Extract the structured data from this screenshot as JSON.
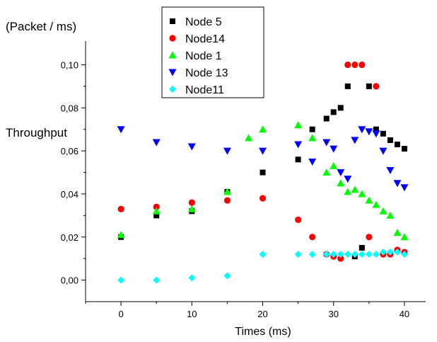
{
  "chart_data": {
    "type": "scatter",
    "ylabel_unit": "(Packet / ms)",
    "ylabel": "Throughput",
    "xlabel": "Times (ms)",
    "xlim": [
      -5,
      43
    ],
    "ylim": [
      -0.01,
      0.111
    ],
    "x_ticks": [
      0,
      10,
      20,
      30,
      40
    ],
    "x_tick_labels": [
      "0",
      "10",
      "20",
      "30",
      "40"
    ],
    "y_ticks": [
      0.0,
      0.02,
      0.04,
      0.06,
      0.08,
      0.1
    ],
    "y_tick_labels": [
      "0,00",
      "0,02",
      "0,04",
      "0,06",
      "0,08",
      "0,10"
    ],
    "legend_position": "top-center",
    "series": [
      {
        "name": "Node 5",
        "marker": "square",
        "color": "#000000",
        "points": [
          [
            0,
            0.02
          ],
          [
            5,
            0.03
          ],
          [
            10,
            0.032
          ],
          [
            15,
            0.041
          ],
          [
            20,
            0.05
          ],
          [
            25,
            0.056
          ],
          [
            27,
            0.07
          ],
          [
            29,
            0.075
          ],
          [
            30,
            0.078
          ],
          [
            31,
            0.08
          ],
          [
            32,
            0.09
          ],
          [
            33,
            0.011
          ],
          [
            34,
            0.015
          ],
          [
            35,
            0.09
          ],
          [
            36,
            0.07
          ],
          [
            37,
            0.068
          ],
          [
            38,
            0.065
          ],
          [
            39,
            0.063
          ],
          [
            40,
            0.061
          ]
        ]
      },
      {
        "name": "Node14",
        "marker": "circle",
        "color": "#ff0000",
        "points": [
          [
            0,
            0.033
          ],
          [
            5,
            0.034
          ],
          [
            10,
            0.036
          ],
          [
            15,
            0.037
          ],
          [
            20,
            0.038
          ],
          [
            25,
            0.028
          ],
          [
            27,
            0.02
          ],
          [
            29,
            0.012
          ],
          [
            30,
            0.011
          ],
          [
            31,
            0.01
          ],
          [
            32,
            0.1
          ],
          [
            33,
            0.1
          ],
          [
            34,
            0.1
          ],
          [
            35,
            0.02
          ],
          [
            36,
            0.09
          ],
          [
            37,
            0.012
          ],
          [
            38,
            0.012
          ],
          [
            39,
            0.014
          ],
          [
            40,
            0.013
          ]
        ]
      },
      {
        "name": "Node 1",
        "marker": "triangle-up",
        "color": "#00ff00",
        "points": [
          [
            0,
            0.021
          ],
          [
            5,
            0.032
          ],
          [
            10,
            0.033
          ],
          [
            15,
            0.041
          ],
          [
            18,
            0.066
          ],
          [
            20,
            0.07
          ],
          [
            25,
            0.072
          ],
          [
            27,
            0.066
          ],
          [
            29,
            0.05
          ],
          [
            30,
            0.053
          ],
          [
            31,
            0.045
          ],
          [
            32,
            0.041
          ],
          [
            33,
            0.042
          ],
          [
            34,
            0.04
          ],
          [
            35,
            0.037
          ],
          [
            36,
            0.035
          ],
          [
            37,
            0.032
          ],
          [
            38,
            0.03
          ],
          [
            39,
            0.022
          ],
          [
            40,
            0.02
          ]
        ]
      },
      {
        "name": "Node 13",
        "marker": "triangle-down",
        "color": "#0000ff",
        "points": [
          [
            0,
            0.07
          ],
          [
            5,
            0.064
          ],
          [
            10,
            0.062
          ],
          [
            15,
            0.06
          ],
          [
            20,
            0.06
          ],
          [
            25,
            0.063
          ],
          [
            27,
            0.055
          ],
          [
            29,
            0.064
          ],
          [
            30,
            0.061
          ],
          [
            31,
            0.05
          ],
          [
            32,
            0.047
          ],
          [
            33,
            0.065
          ],
          [
            34,
            0.07
          ],
          [
            35,
            0.069
          ],
          [
            36,
            0.068
          ],
          [
            37,
            0.06
          ],
          [
            38,
            0.051
          ],
          [
            39,
            0.045
          ],
          [
            40,
            0.043
          ]
        ]
      },
      {
        "name": "Node11",
        "marker": "diamond",
        "color": "#00ffff",
        "points": [
          [
            0,
            0.0
          ],
          [
            5,
            0.0
          ],
          [
            10,
            0.001
          ],
          [
            15,
            0.002
          ],
          [
            20,
            0.012
          ],
          [
            25,
            0.012
          ],
          [
            27,
            0.012
          ],
          [
            29,
            0.012
          ],
          [
            30,
            0.012
          ],
          [
            31,
            0.012
          ],
          [
            32,
            0.012
          ],
          [
            33,
            0.012
          ],
          [
            34,
            0.012
          ],
          [
            35,
            0.012
          ],
          [
            36,
            0.012
          ],
          [
            37,
            0.013
          ],
          [
            38,
            0.013
          ],
          [
            39,
            0.013
          ],
          [
            40,
            0.012
          ]
        ]
      }
    ]
  }
}
